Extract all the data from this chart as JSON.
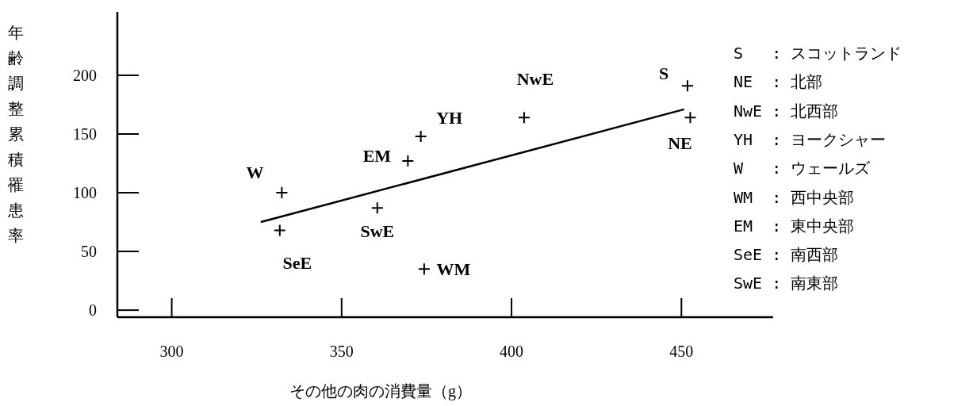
{
  "chart_data": {
    "type": "scatter",
    "xlabel": "その他の肉の消費量（g）",
    "ylabel": "年齢調整累積罹患率",
    "xlim": [
      284,
      477
    ],
    "ylim": [
      -6,
      254
    ],
    "xticks": [
      300,
      350,
      400,
      450
    ],
    "yticks": [
      0,
      50,
      100,
      150,
      200
    ],
    "grid": false,
    "series": [
      {
        "marker": "cross",
        "color": "#000000",
        "x": [
          332.4,
          331.8,
          360.5,
          369.5,
          373.3,
          374.3,
          403.7,
          451.8,
          452.6
        ],
        "values": [
          100,
          68,
          87,
          127,
          148,
          35,
          164,
          191,
          164
        ]
      },
      {
        "type": "line",
        "marker": "none",
        "color": "#000000",
        "x": [
          326.2,
          450.8
        ],
        "values": [
          75,
          171
        ]
      }
    ],
    "annotations": [
      {
        "text": "W",
        "x": 332.4,
        "y": 100
      },
      {
        "text": "SeE",
        "x": 331.8,
        "y": 68
      },
      {
        "text": "SwE",
        "x": 360.5,
        "y": 87
      },
      {
        "text": "EM",
        "x": 369.5,
        "y": 127
      },
      {
        "text": "YH",
        "x": 373.3,
        "y": 148
      },
      {
        "text": "WM",
        "x": 374.3,
        "y": 35
      },
      {
        "text": "NwE",
        "x": 403.7,
        "y": 164
      },
      {
        "text": "S",
        "x": 451.8,
        "y": 191
      },
      {
        "text": "NE",
        "x": 452.6,
        "y": 164
      },
      "S   : スコットランド",
      "NE  : 北部",
      "NwE : 北西部",
      "YH  : ヨークシャー",
      "W   : ウェールズ",
      "WM  : 西中央部",
      "EM  : 東中央部",
      "SeE : 南西部",
      "SwE : 南東部"
    ]
  }
}
